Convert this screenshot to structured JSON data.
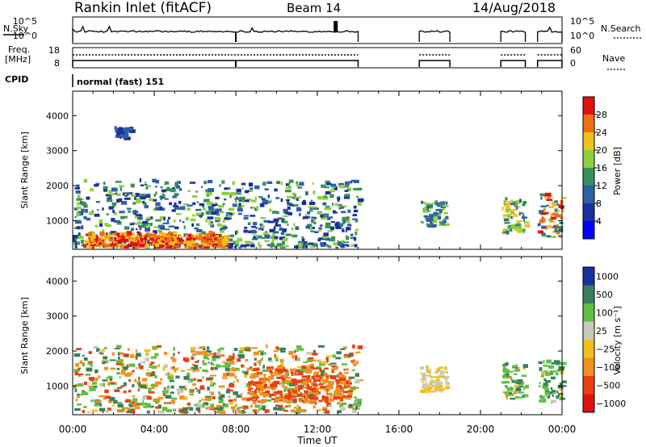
{
  "header": {
    "station": "Rankin Inlet (fitACF)",
    "beam": "Beam 14",
    "date": "14/Aug/2018"
  },
  "strips": {
    "nsky_label": "N.Sky",
    "nsearch_label": "N.Search",
    "count_tick_high": "10^5",
    "count_tick_low": "10^0",
    "freq_label": "Freq.",
    "freq_unit": "[MHz]",
    "freq_ticks": [
      "18",
      "8"
    ],
    "nave_label": "Nave",
    "nave_ticks": [
      "60",
      "0"
    ],
    "cpid_label": "CPID",
    "cpid_value": "normal (fast) 151",
    "operating_intervals_h": [
      [
        0.0,
        14.0
      ],
      [
        17.0,
        18.5
      ],
      [
        21.0,
        22.2
      ],
      [
        22.8,
        24.0
      ]
    ]
  },
  "time_axis": {
    "label": "Time UT",
    "range_h": [
      0,
      24
    ],
    "ticks": [
      "00:00",
      "04:00",
      "08:00",
      "12:00",
      "16:00",
      "20:00",
      "00:00"
    ]
  },
  "power_panel": {
    "ylabel": "Slant Range [km]",
    "yticks": [
      "4000",
      "3000",
      "2000",
      "1000"
    ],
    "colorbar_label": "Power [dB]",
    "colorbar_ticks": [
      "28",
      "24",
      "20",
      "16",
      "12",
      "8",
      "4"
    ]
  },
  "velocity_panel": {
    "ylabel": "Slant Range [km]",
    "yticks": [
      "4000",
      "3000",
      "2000",
      "1000"
    ],
    "colorbar_label": "Velocity [m s⁻¹]",
    "colorbar_ticks": [
      "1000",
      "500",
      "100",
      "25",
      "−25",
      "−100",
      "−500",
      "−1000"
    ]
  },
  "chart_data": [
    {
      "type": "heatmap",
      "quantity": "power",
      "xlabel": "Time UT",
      "ylabel": "Slant Range [km]",
      "xlim_h": [
        0,
        24
      ],
      "ylim_km": [
        180,
        4700
      ],
      "color_scale": {
        "unit": "dB",
        "range": [
          0,
          32
        ],
        "bins": [
          {
            "from": 0,
            "to": 4,
            "color": "#0000ff"
          },
          {
            "from": 4,
            "to": 8,
            "color": "#1a2fa0"
          },
          {
            "from": 8,
            "to": 12,
            "color": "#2e5fa8"
          },
          {
            "from": 12,
            "to": 16,
            "color": "#3a8f5a"
          },
          {
            "from": 16,
            "to": 20,
            "color": "#8fcf3c"
          },
          {
            "from": 20,
            "to": 24,
            "color": "#f0c020"
          },
          {
            "from": 24,
            "to": 28,
            "color": "#f07010"
          },
          {
            "from": 28,
            "to": 32,
            "color": "#e01010"
          }
        ]
      },
      "echo_regions": [
        {
          "t": [
            0.0,
            14.0
          ],
          "range_km": [
            200,
            2100
          ],
          "power_db": [
            4,
            20
          ]
        },
        {
          "t": [
            0.5,
            7.5
          ],
          "range_km": [
            200,
            600
          ],
          "power_db": [
            20,
            32
          ]
        },
        {
          "t": [
            2.0,
            2.8
          ],
          "range_km": [
            3300,
            3600
          ],
          "power_db": [
            4,
            12
          ]
        },
        {
          "t": [
            17.0,
            18.3
          ],
          "range_km": [
            800,
            1500
          ],
          "power_db": [
            8,
            20
          ]
        },
        {
          "t": [
            21.0,
            22.2
          ],
          "range_km": [
            600,
            1600
          ],
          "power_db": [
            8,
            24
          ]
        },
        {
          "t": [
            22.8,
            24.0
          ],
          "range_km": [
            500,
            1700
          ],
          "power_db": [
            8,
            32
          ]
        }
      ]
    },
    {
      "type": "heatmap",
      "quantity": "velocity",
      "xlabel": "Time UT",
      "ylabel": "Slant Range [km]",
      "xlim_h": [
        0,
        24
      ],
      "ylim_km": [
        180,
        4700
      ],
      "color_scale": {
        "unit": "m s^-1",
        "bins": [
          {
            "label": "1000",
            "color": "#1a2fa0"
          },
          {
            "label": "500",
            "color": "#3a7f5a"
          },
          {
            "label": "100",
            "color": "#5fc040"
          },
          {
            "label": "25",
            "color": "#c8c8c0"
          },
          {
            "label": "-25",
            "color": "#f0c020"
          },
          {
            "label": "-100",
            "color": "#f09020"
          },
          {
            "label": "-500",
            "color": "#e84010"
          },
          {
            "label": "-1000",
            "color": "#e01010"
          }
        ]
      },
      "echo_regions": [
        {
          "t": [
            0.0,
            14.0
          ],
          "range_km": [
            200,
            2100
          ],
          "velocity_ms": [
            -500,
            500
          ]
        },
        {
          "t": [
            8.5,
            13.5
          ],
          "range_km": [
            500,
            1500
          ],
          "velocity_ms": [
            -500,
            -100
          ]
        },
        {
          "t": [
            17.0,
            18.3
          ],
          "range_km": [
            800,
            1500
          ],
          "velocity_ms": [
            -25,
            25
          ]
        },
        {
          "t": [
            21.0,
            22.2
          ],
          "range_km": [
            600,
            1600
          ],
          "velocity_ms": [
            -100,
            500
          ]
        },
        {
          "t": [
            22.8,
            24.0
          ],
          "range_km": [
            500,
            1700
          ],
          "velocity_ms": [
            -25,
            500
          ]
        }
      ]
    }
  ]
}
